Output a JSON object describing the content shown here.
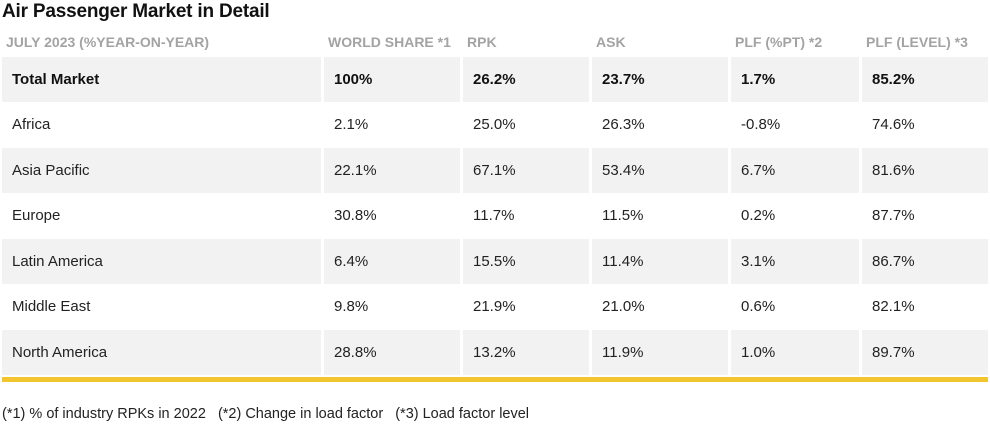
{
  "title": "Air Passenger Market in Detail",
  "accent_color": "#f2c52e",
  "headers": [
    "JULY 2023 (%YEAR-ON-YEAR)",
    "WORLD SHARE *1",
    "RPK",
    "ASK",
    "PLF (%PT) *2",
    "PLF (LEVEL) *3"
  ],
  "rows": [
    [
      "Total Market",
      "100%",
      "26.2%",
      "23.7%",
      "1.7%",
      "85.2%"
    ],
    [
      "Africa",
      "2.1%",
      "25.0%",
      "26.3%",
      "-0.8%",
      "74.6%"
    ],
    [
      "Asia Pacific",
      "22.1%",
      "67.1%",
      "53.4%",
      "6.7%",
      "81.6%"
    ],
    [
      "Europe",
      "30.8%",
      "11.7%",
      "11.5%",
      "0.2%",
      "87.7%"
    ],
    [
      "Latin America",
      "6.4%",
      "15.5%",
      "11.4%",
      "3.1%",
      "86.7%"
    ],
    [
      "Middle East",
      "9.8%",
      "21.9%",
      "21.0%",
      "0.6%",
      "82.1%"
    ],
    [
      "North America",
      "28.8%",
      "13.2%",
      "11.9%",
      "1.0%",
      "89.7%"
    ]
  ],
  "footnotes": [
    "(*1) % of industry RPKs in 2022",
    "(*2) Change in load factor",
    "(*3) Load factor level"
  ]
}
